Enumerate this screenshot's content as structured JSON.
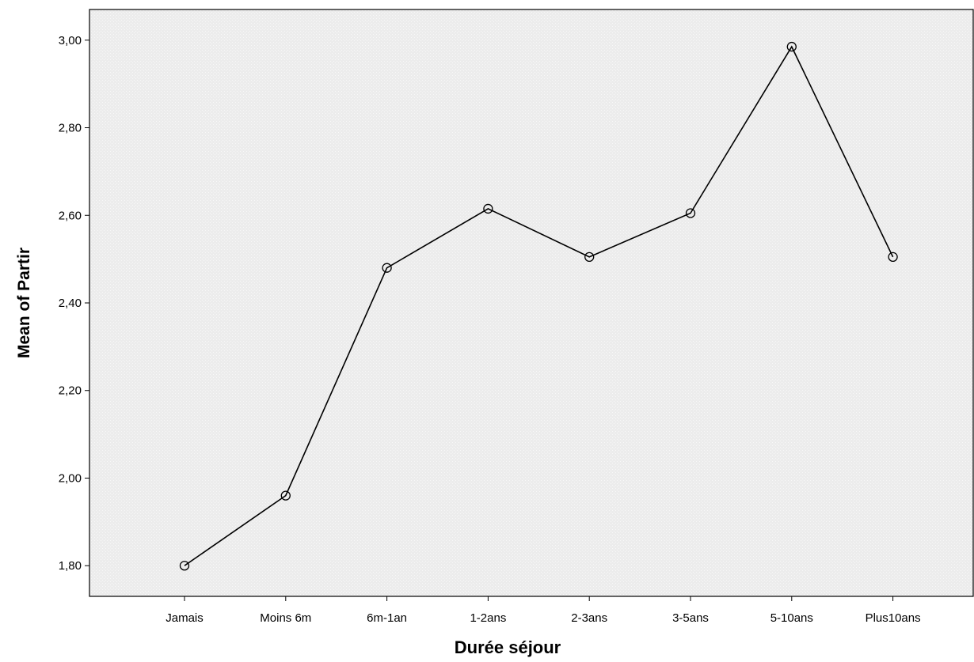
{
  "chart_data": {
    "type": "line",
    "xlabel": "Durée séjour",
    "ylabel": "Mean of Partir",
    "categories": [
      "Jamais",
      "Moins 6m",
      "6m-1an",
      "1-2ans",
      "2-3ans",
      "3-5ans",
      "5-10ans",
      "Plus10ans"
    ],
    "series": [
      {
        "values": [
          1.8,
          1.96,
          2.48,
          2.615,
          2.505,
          2.605,
          2.985,
          2.505
        ]
      }
    ],
    "ylim": [
      1.73,
      3.07
    ],
    "yticks": [
      1.8,
      2.0,
      2.2,
      2.4,
      2.6,
      2.8,
      3.0
    ],
    "ytick_labels": [
      "1,80",
      "2,00",
      "2,20",
      "2,40",
      "2,60",
      "2,80",
      "3,00"
    ],
    "grid": false,
    "marker": "open-circle",
    "colors": {
      "line": "#000000",
      "plot_background": "#efefef",
      "axis": "#000000"
    }
  }
}
